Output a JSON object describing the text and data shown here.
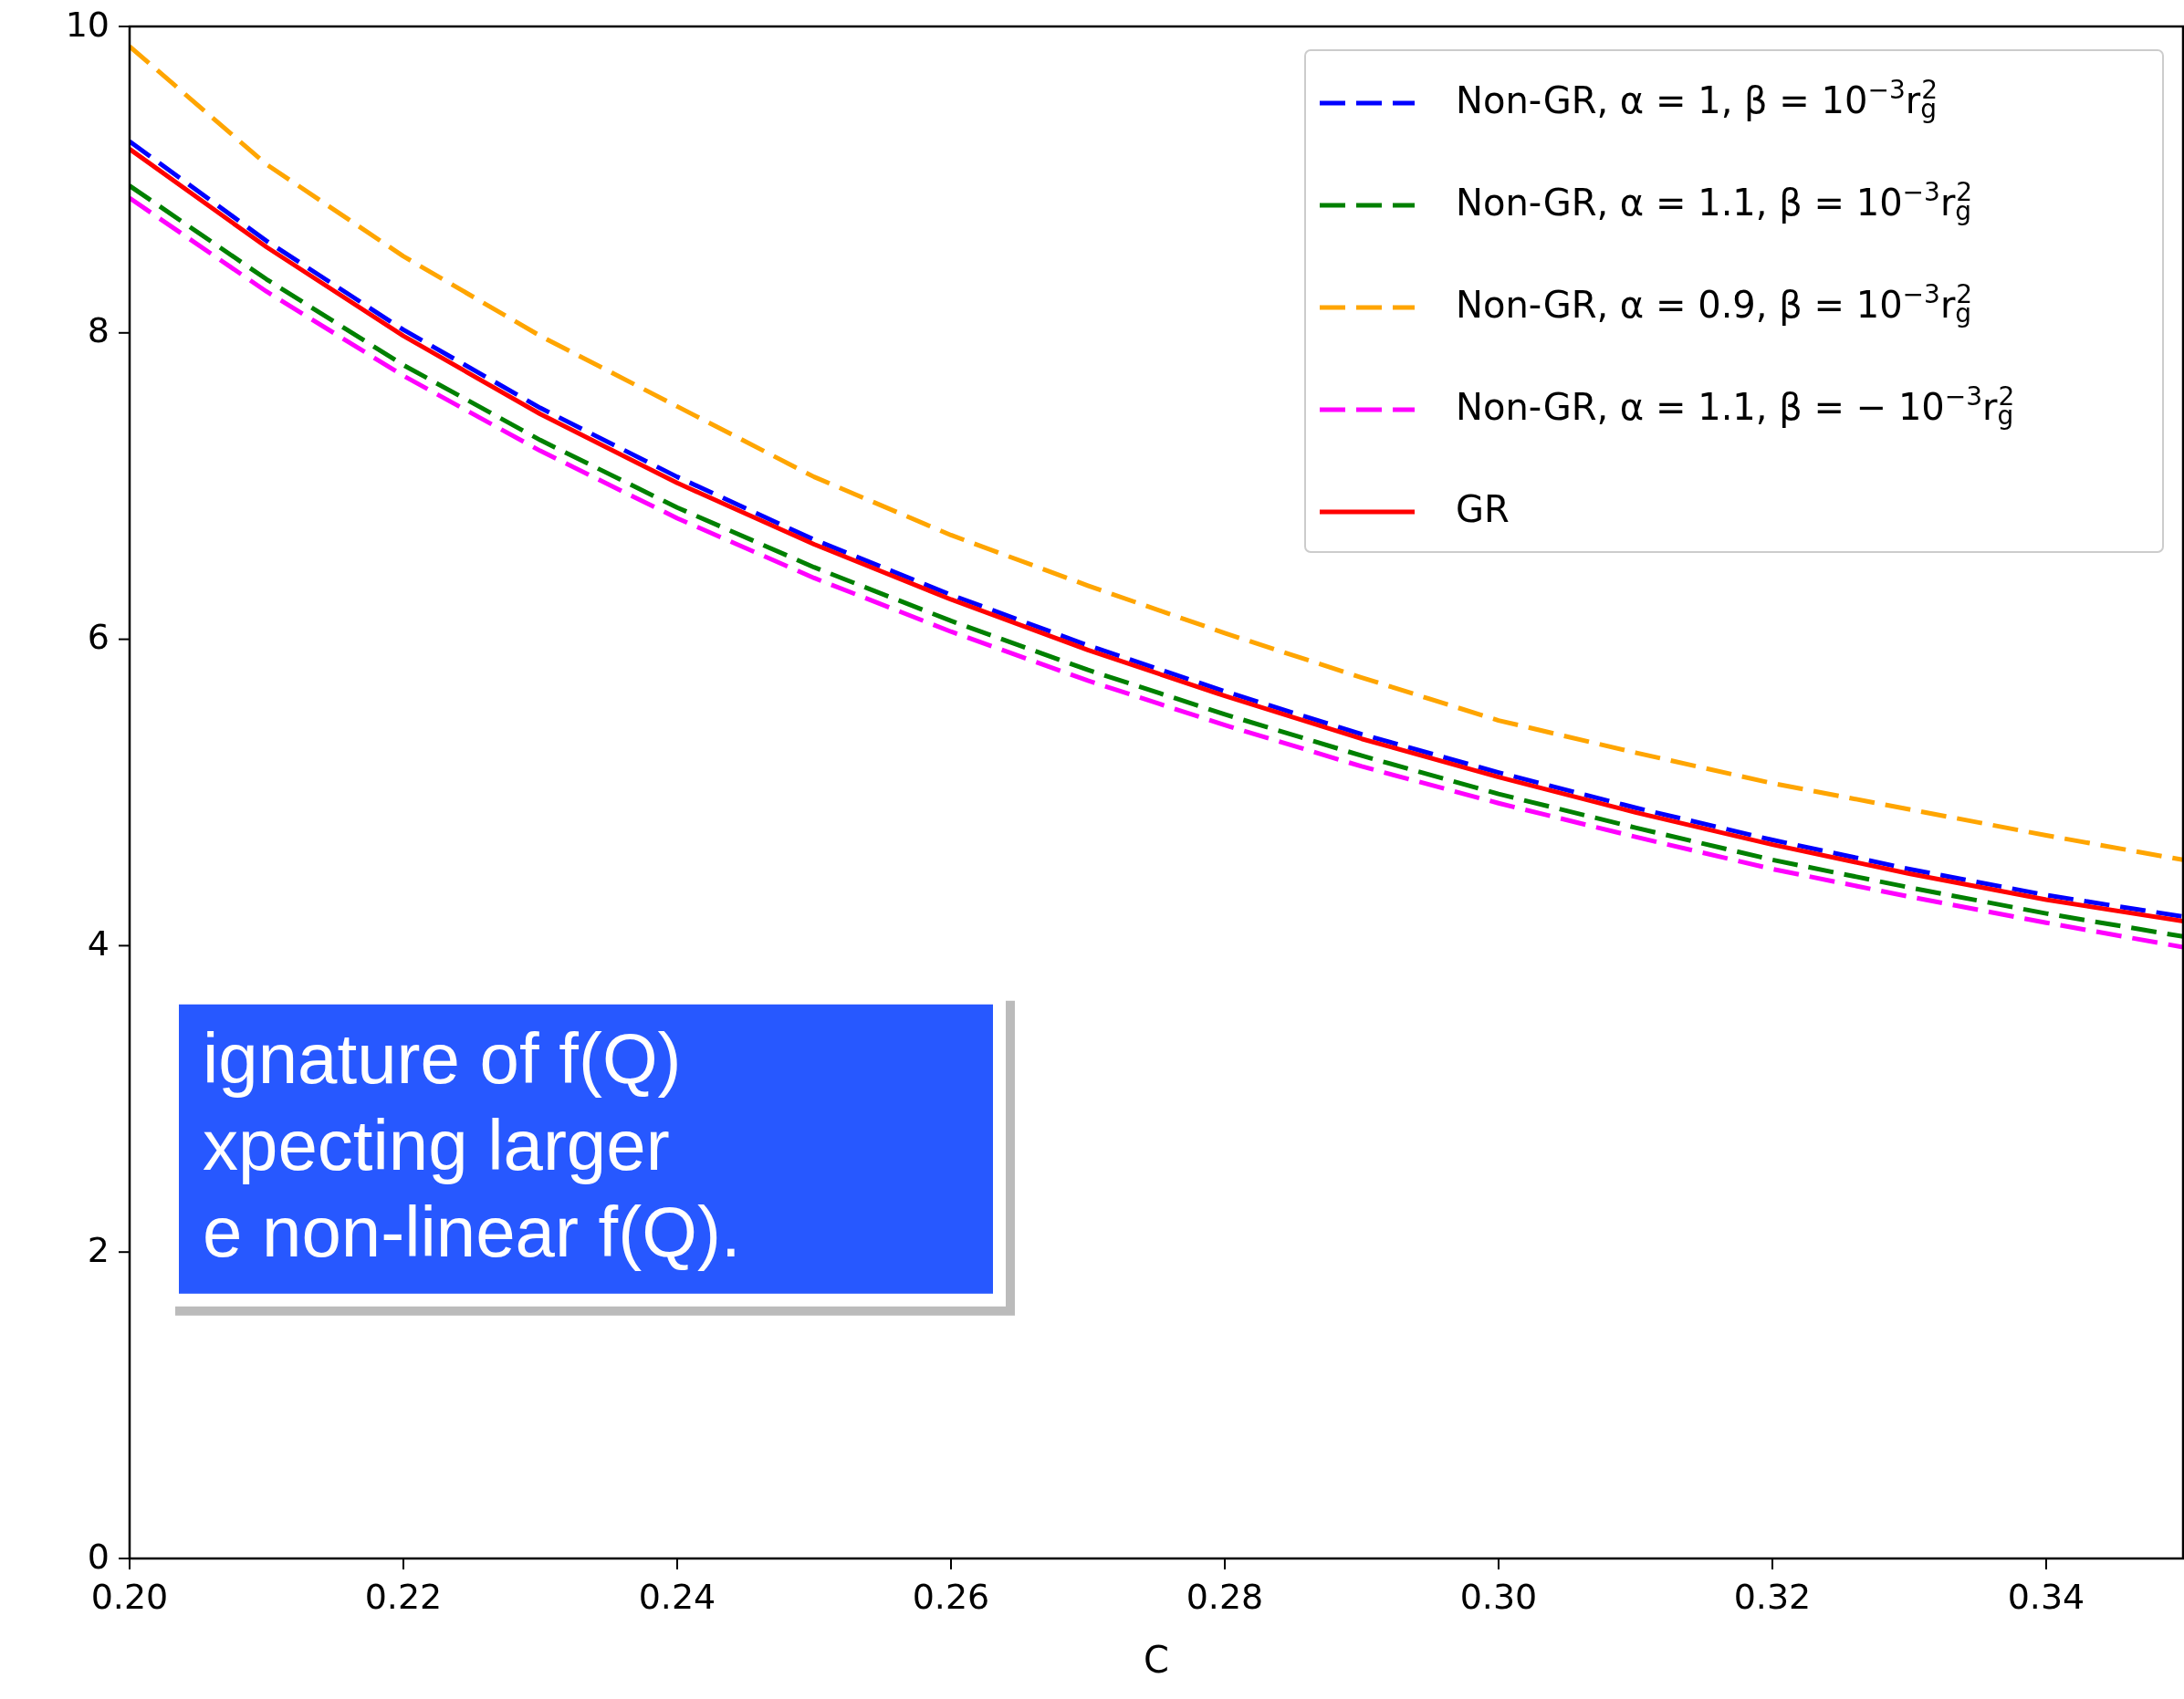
{
  "chart_data": {
    "type": "line",
    "xlabel": "C",
    "x": [
      0.2,
      0.21,
      0.22,
      0.23,
      0.24,
      0.25,
      0.26,
      0.27,
      0.28,
      0.29,
      0.3,
      0.31,
      0.32,
      0.33,
      0.34,
      0.35
    ],
    "series": [
      {
        "name": "Non-GR, α = 1, β = 10$^{−3}$r$_{g}$$^{2}$",
        "color": "#0000ff",
        "line_style": "dashed",
        "values": [
          9.25,
          8.6,
          8.02,
          7.51,
          7.06,
          6.65,
          6.29,
          5.96,
          5.66,
          5.38,
          5.13,
          4.9,
          4.69,
          4.5,
          4.33,
          4.19
        ]
      },
      {
        "name": "Non-GR, α = 1.1, β = 10$^{−3}$r$_{g}$$^{2}$",
        "color": "#008000",
        "line_style": "dashed",
        "values": [
          8.96,
          8.35,
          7.79,
          7.3,
          6.86,
          6.47,
          6.12,
          5.8,
          5.51,
          5.24,
          4.99,
          4.77,
          4.56,
          4.38,
          4.21,
          4.06
        ]
      },
      {
        "name": "Non-GR, α = 0.9, β = 10$^{−3}$r$_{g}$$^{2}$",
        "color": "#ffa500",
        "line_style": "dashed",
        "values": [
          9.87,
          9.1,
          8.5,
          7.98,
          7.52,
          7.06,
          6.68,
          6.35,
          6.04,
          5.75,
          5.47,
          5.26,
          5.06,
          4.89,
          4.72,
          4.56
        ]
      },
      {
        "name": "Non-GR, α = 1.1, β = − 10$^{−3}$r$_{g}$$^{2}$",
        "color": "#ff00ff",
        "line_style": "dashed",
        "values": [
          8.88,
          8.27,
          7.72,
          7.23,
          6.79,
          6.4,
          6.05,
          5.73,
          5.44,
          5.17,
          4.93,
          4.71,
          4.5,
          4.32,
          4.15,
          3.99
        ]
      },
      {
        "name": "GR",
        "color": "#ff0000",
        "line_style": "solid",
        "values": [
          9.2,
          8.56,
          7.98,
          7.47,
          7.02,
          6.62,
          6.26,
          5.93,
          5.63,
          5.35,
          5.1,
          4.87,
          4.66,
          4.47,
          4.3,
          4.16
        ]
      }
    ],
    "xlim": [
      0.2,
      0.35
    ],
    "ylim": [
      0,
      10
    ],
    "xticks": [
      {
        "value": 0.2,
        "label": "0.20"
      },
      {
        "value": 0.22,
        "label": "0.22"
      },
      {
        "value": 0.24,
        "label": "0.24"
      },
      {
        "value": 0.26,
        "label": "0.26"
      },
      {
        "value": 0.28,
        "label": "0.28"
      },
      {
        "value": 0.3,
        "label": "0.30"
      },
      {
        "value": 0.32,
        "label": "0.32"
      },
      {
        "value": 0.34,
        "label": "0.34"
      }
    ],
    "yticks": [
      0,
      2,
      4,
      6,
      8,
      10
    ],
    "grid": false,
    "legend": "top right",
    "marker": "none",
    "annotations": [
      "ignature of f(Q)",
      "xpecting larger",
      "e non-linear f(Q)."
    ]
  }
}
